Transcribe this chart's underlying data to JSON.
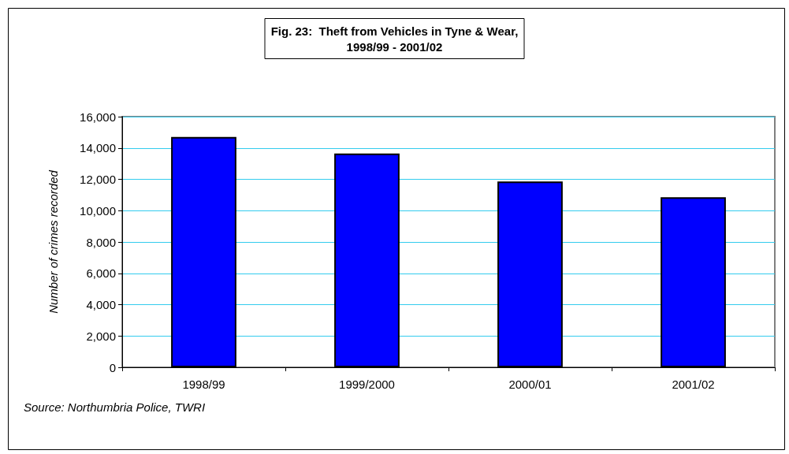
{
  "chart_data": {
    "type": "bar",
    "title": "Fig. 23:  Theft from Vehicles in Tyne & Wear,\n1998/99 - 2001/02",
    "ylabel": "Number of crimes recorded",
    "categories": [
      "1998/99",
      "1999/2000",
      "2000/01",
      "2001/02"
    ],
    "values": [
      14700,
      13650,
      11860,
      10860
    ],
    "color": "#0000ff",
    "ylim": [
      0,
      16000
    ],
    "yticks": [
      {
        "value": 0,
        "label": "0"
      },
      {
        "value": 2000,
        "label": "2,000"
      },
      {
        "value": 4000,
        "label": "4,000"
      },
      {
        "value": 6000,
        "label": "6,000"
      },
      {
        "value": 8000,
        "label": "8,000"
      },
      {
        "value": 10000,
        "label": "10,000"
      },
      {
        "value": 12000,
        "label": "12,000"
      },
      {
        "value": 14000,
        "label": "14,000"
      },
      {
        "value": 16000,
        "label": "16,000"
      }
    ],
    "grid": "y",
    "annotations": [
      "Source: Northumbria Police, TWRI"
    ]
  }
}
